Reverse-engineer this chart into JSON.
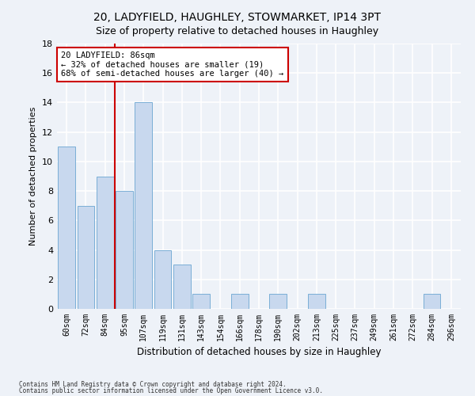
{
  "title": "20, LADYFIELD, HAUGHLEY, STOWMARKET, IP14 3PT",
  "subtitle": "Size of property relative to detached houses in Haughley",
  "xlabel": "Distribution of detached houses by size in Haughley",
  "ylabel": "Number of detached properties",
  "bar_color": "#c8d8ee",
  "bar_edge_color": "#7aaed6",
  "categories": [
    "60sqm",
    "72sqm",
    "84sqm",
    "95sqm",
    "107sqm",
    "119sqm",
    "131sqm",
    "143sqm",
    "154sqm",
    "166sqm",
    "178sqm",
    "190sqm",
    "202sqm",
    "213sqm",
    "225sqm",
    "237sqm",
    "249sqm",
    "261sqm",
    "272sqm",
    "284sqm",
    "296sqm"
  ],
  "values": [
    11,
    7,
    9,
    8,
    14,
    4,
    3,
    1,
    0,
    1,
    0,
    1,
    0,
    1,
    0,
    0,
    0,
    0,
    0,
    1,
    0
  ],
  "ylim": [
    0,
    18
  ],
  "yticks": [
    0,
    2,
    4,
    6,
    8,
    10,
    12,
    14,
    16,
    18
  ],
  "annotation_line1": "20 LADYFIELD: 86sqm",
  "annotation_line2": "← 32% of detached houses are smaller (19)",
  "annotation_line3": "68% of semi-detached houses are larger (40) →",
  "vline_color": "#cc0000",
  "annotation_box_color": "#cc0000",
  "background_color": "#eef2f8",
  "grid_color": "#ffffff",
  "footnote1": "Contains HM Land Registry data © Crown copyright and database right 2024.",
  "footnote2": "Contains public sector information licensed under the Open Government Licence v3.0."
}
